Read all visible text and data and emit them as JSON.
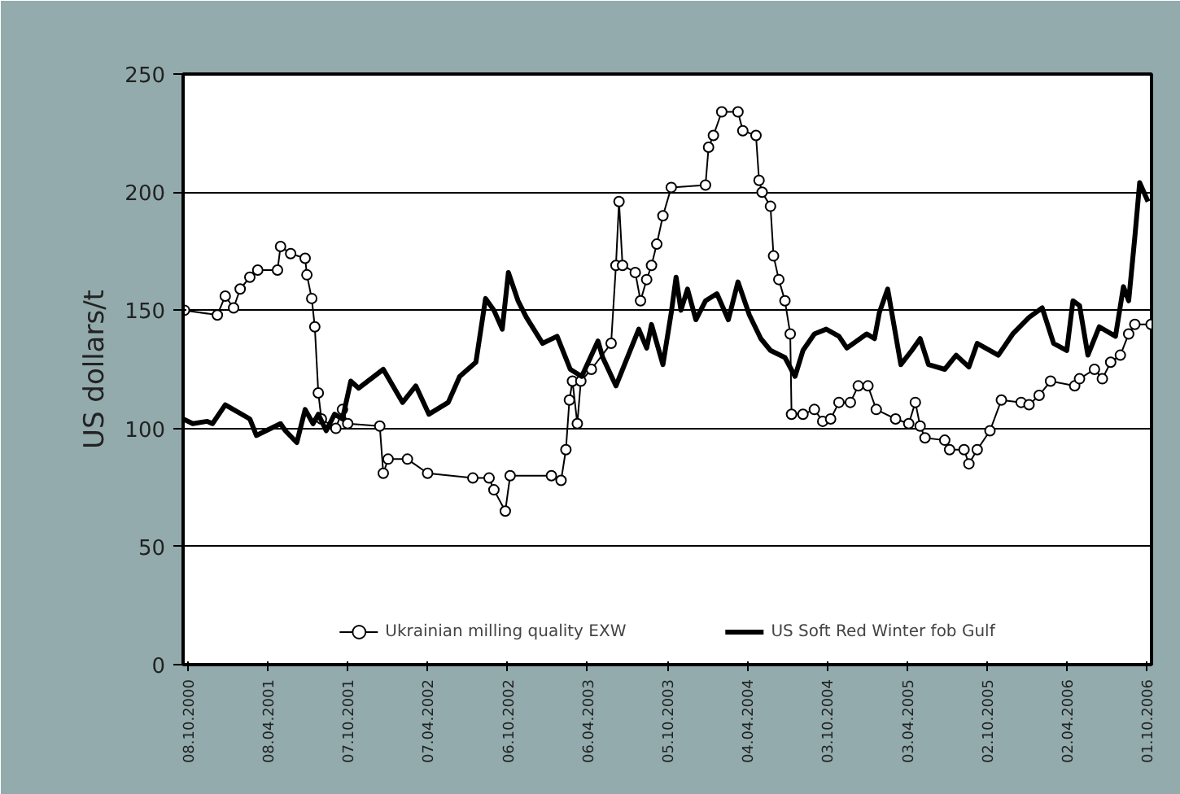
{
  "chart_data": {
    "type": "line",
    "ylabel": "US dollars/t",
    "ylim": [
      0,
      250
    ],
    "yticks": [
      0,
      50,
      100,
      150,
      200,
      250
    ],
    "xlim": [
      "2000-09-27",
      "2006-10-12"
    ],
    "xticks": [
      {
        "value": "2000-10-08",
        "label": "08.10.2000"
      },
      {
        "value": "2001-04-08",
        "label": "08.04.2001"
      },
      {
        "value": "2001-10-07",
        "label": "07.10.2001"
      },
      {
        "value": "2002-04-07",
        "label": "07.04.2002"
      },
      {
        "value": "2002-10-06",
        "label": "06.10.2002"
      },
      {
        "value": "2003-04-06",
        "label": "06.04.2003"
      },
      {
        "value": "2003-10-05",
        "label": "05.10.2003"
      },
      {
        "value": "2004-04-04",
        "label": "04.04.2004"
      },
      {
        "value": "2004-10-03",
        "label": "03.10.2004"
      },
      {
        "value": "2005-04-03",
        "label": "03.04.2005"
      },
      {
        "value": "2005-10-02",
        "label": "02.10.2005"
      },
      {
        "value": "2006-04-02",
        "label": "02.04.2006"
      },
      {
        "value": "2006-10-01",
        "label": "01.10.2006"
      }
    ],
    "grid": "y",
    "legend": "bottom",
    "line_style": "solid",
    "series": [
      {
        "name": "Ukrainian milling quality EXW",
        "color": "#000000",
        "marker": "circle",
        "x": [
          "2000-09-30",
          "2000-12-14",
          "2001-01-01",
          "2001-01-20",
          "2001-02-04",
          "2001-02-26",
          "2001-03-16",
          "2001-04-30",
          "2001-05-07",
          "2001-05-30",
          "2001-07-02",
          "2001-07-06",
          "2001-07-17",
          "2001-07-24",
          "2001-08-01",
          "2001-08-08",
          "2001-09-10",
          "2001-09-25",
          "2001-10-07",
          "2001-12-19",
          "2001-12-27",
          "2002-01-07",
          "2002-02-20",
          "2002-04-07",
          "2002-07-19",
          "2002-08-25",
          "2002-09-05",
          "2002-10-01",
          "2002-10-12",
          "2003-01-14",
          "2003-02-05",
          "2003-02-16",
          "2003-02-24",
          "2003-03-03",
          "2003-03-14",
          "2003-03-22",
          "2003-04-15",
          "2003-05-30",
          "2003-06-10",
          "2003-06-17",
          "2003-06-25",
          "2003-07-24",
          "2003-08-05",
          "2003-08-19",
          "2003-08-30",
          "2003-09-11",
          "2003-09-25",
          "2003-10-14",
          "2003-12-31",
          "2004-01-07",
          "2004-01-18",
          "2004-02-06",
          "2004-03-14",
          "2004-03-25",
          "2004-04-24",
          "2004-05-01",
          "2004-05-08",
          "2004-05-27",
          "2004-06-03",
          "2004-06-15",
          "2004-06-29",
          "2004-07-11",
          "2004-07-14",
          "2004-08-09",
          "2004-09-04",
          "2004-09-23",
          "2004-10-11",
          "2004-10-30",
          "2004-11-25",
          "2004-12-13",
          "2005-01-04",
          "2005-01-23",
          "2005-03-08",
          "2005-04-07",
          "2005-04-22",
          "2005-05-03",
          "2005-05-14",
          "2005-06-28",
          "2005-07-09",
          "2005-08-11",
          "2005-08-22",
          "2005-09-10",
          "2005-10-09",
          "2005-11-04",
          "2005-12-19",
          "2006-01-06",
          "2006-01-29",
          "2006-02-24",
          "2006-04-20",
          "2006-05-01",
          "2006-06-04",
          "2006-06-22",
          "2006-07-11",
          "2006-08-02",
          "2006-08-21",
          "2006-09-04",
          "2006-10-11"
        ],
        "values": [
          150,
          148,
          156,
          151,
          159,
          164,
          167,
          167,
          177,
          174,
          172,
          165,
          155,
          143,
          115,
          104,
          100,
          108,
          102,
          101,
          81,
          87,
          87,
          81,
          79,
          79,
          74,
          65,
          80,
          80,
          78,
          91,
          112,
          120,
          102,
          120,
          125,
          136,
          169,
          196,
          169,
          166,
          154,
          163,
          169,
          178,
          190,
          202,
          203,
          219,
          224,
          234,
          234,
          226,
          224,
          205,
          200,
          194,
          173,
          163,
          154,
          140,
          106,
          106,
          108,
          103,
          104,
          111,
          111,
          118,
          118,
          108,
          104,
          102,
          111,
          101,
          96,
          95,
          91,
          91,
          85,
          91,
          99,
          112,
          111,
          110,
          114,
          120,
          118,
          121,
          125,
          121,
          128,
          131,
          140,
          144,
          144
        ]
      },
      {
        "name": "US Soft Red Winter fob Gulf",
        "color": "#000000",
        "marker": "none",
        "x": [
          "2000-09-27",
          "2000-10-19",
          "2000-11-21",
          "2000-12-03",
          "2001-01-01",
          "2001-02-26",
          "2001-03-13",
          "2001-05-07",
          "2001-05-18",
          "2001-06-13",
          "2001-07-02",
          "2001-07-20",
          "2001-08-01",
          "2001-08-19",
          "2001-09-07",
          "2001-09-25",
          "2001-10-14",
          "2001-11-01",
          "2001-12-27",
          "2002-02-09",
          "2002-03-11",
          "2002-04-10",
          "2002-05-24",
          "2002-06-19",
          "2002-07-26",
          "2002-08-17",
          "2002-09-05",
          "2002-09-24",
          "2002-10-08",
          "2002-10-30",
          "2002-11-18",
          "2002-12-25",
          "2003-01-27",
          "2003-02-26",
          "2003-03-24",
          "2003-04-30",
          "2003-05-11",
          "2003-06-10",
          "2003-08-01",
          "2003-08-19",
          "2003-08-30",
          "2003-09-25",
          "2003-10-14",
          "2003-10-25",
          "2003-11-05",
          "2003-11-20",
          "2003-12-09",
          "2003-12-31",
          "2004-01-26",
          "2004-02-21",
          "2004-03-14",
          "2004-04-09",
          "2004-05-05",
          "2004-05-27",
          "2004-06-29",
          "2004-07-22",
          "2004-08-09",
          "2004-09-04",
          "2004-10-01",
          "2004-10-30",
          "2004-11-17",
          "2005-01-01",
          "2005-01-19",
          "2005-01-30",
          "2005-02-18",
          "2005-03-20",
          "2005-04-14",
          "2005-05-03",
          "2005-05-22",
          "2005-06-28",
          "2005-07-24",
          "2005-08-22",
          "2005-09-10",
          "2005-10-28",
          "2005-11-30",
          "2006-01-06",
          "2006-02-05",
          "2006-03-03",
          "2006-04-02",
          "2006-04-16",
          "2006-05-01",
          "2006-05-20",
          "2006-06-15",
          "2006-07-22",
          "2006-08-09",
          "2006-08-21",
          "2006-09-04",
          "2006-09-15",
          "2006-10-04"
        ],
        "values": [
          104,
          102,
          103,
          102,
          110,
          104,
          97,
          102,
          99,
          94,
          108,
          102,
          106,
          99,
          106,
          104,
          120,
          117,
          125,
          111,
          118,
          106,
          111,
          122,
          128,
          155,
          150,
          142,
          166,
          154,
          147,
          136,
          139,
          125,
          122,
          137,
          130,
          118,
          142,
          134,
          144,
          127,
          149,
          164,
          150,
          159,
          146,
          154,
          157,
          146,
          162,
          148,
          138,
          133,
          130,
          122,
          133,
          140,
          142,
          139,
          134,
          140,
          138,
          149,
          159,
          127,
          133,
          138,
          127,
          125,
          131,
          126,
          136,
          131,
          140,
          147,
          151,
          136,
          133,
          154,
          152,
          131,
          143,
          139,
          160,
          154,
          181,
          204,
          196
        ]
      }
    ]
  }
}
